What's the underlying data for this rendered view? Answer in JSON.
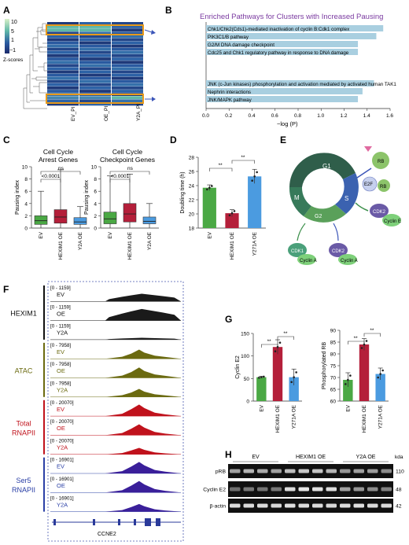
{
  "panels": {
    "A": "A",
    "B": "B",
    "C": "C",
    "D": "D",
    "E": "E",
    "F": "F",
    "G": "G",
    "H": "H"
  },
  "panelA": {
    "scale_ticks": [
      "10",
      "5",
      "1",
      "−1"
    ],
    "scale_label": "Z-scores",
    "columns": [
      "EV_PI",
      "OE_PI",
      "Y2A_PI"
    ]
  },
  "panelB": {
    "title": "Enriched Pathways for Clusters with Increased Pausing",
    "xlabel": "−log (P)",
    "bars": [
      {
        "label": "Chk1/Chk2(Cds1)-mediated inactivation of cyclin B:Cdk1 complex",
        "value": 1.54
      },
      {
        "label": "PIK3C1/B pathway",
        "value": 1.48
      },
      {
        "label": "G2/M DNA damage checkpoint",
        "value": 1.32
      },
      {
        "label": "Cdc25 and Chk1 regulatory pathway in response to DNA damage",
        "value": 1.32
      },
      {
        "label": "JNK (c-Jun kinases) phosphorylation and activation mediated by activated human TAK1",
        "value": 1.46
      },
      {
        "label": "Nephrin interactions",
        "value": 1.36
      },
      {
        "label": "JNK/MAPK pathway",
        "value": 1.32
      }
    ],
    "xticks": [
      "0.0",
      "0.2",
      "0.4",
      "0.6",
      "0.8",
      "1.0",
      "1.2",
      "1.4",
      "1.6"
    ]
  },
  "panelC": {
    "left_title": [
      "Cell Cycle",
      "Arrest Genes"
    ],
    "right_title": [
      "Cell Cycle",
      "Checkpoint Genes"
    ],
    "ylabel": "Pausing index",
    "yticks": [
      "0",
      "2",
      "4",
      "6",
      "8",
      "10"
    ],
    "groups": [
      "EV",
      "HEXIM1 OE",
      "Y2A OE"
    ],
    "sig1": "<0.0001",
    "sig2": "ns",
    "colors": [
      "#4aa844",
      "#b41f3a",
      "#4b9be0"
    ]
  },
  "panelD": {
    "ylabel": "Doubling time (h)",
    "yticks": [
      "18",
      "20",
      "22",
      "24",
      "26",
      "28"
    ],
    "groups": [
      "EV",
      "HEXIM1 OE",
      "Y271A OE"
    ],
    "values": [
      23.7,
      20.1,
      25.3
    ],
    "errors": [
      0.4,
      0.5,
      1.0
    ],
    "sig": "**"
  },
  "panelE": {
    "phases": [
      "G1",
      "S",
      "G2",
      "M"
    ],
    "labels": {
      "rb": "RB",
      "e2f": "E2F",
      "cdk2": "CDK2",
      "cyclinE": "Cyclin E",
      "cdk1": "CDK1",
      "cyclinA": "Cyclin A"
    }
  },
  "panelF": {
    "groups": [
      {
        "name": "HEXIM1",
        "color": "#111111",
        "fill": "#1a1a1a",
        "range": "[0 - 1159]"
      },
      {
        "name": "ATAC",
        "color": "#6b6a10",
        "fill": "#6b6a10",
        "range": "[0 - 7958]"
      },
      {
        "name": "Total RNAPII",
        "color": "#c0121c",
        "fill": "#c0121c",
        "range": "[0 - 20070]"
      },
      {
        "name": "Ser5 RNAPII",
        "color": "#2b40a6",
        "fill": "#3a1f9a",
        "range": "[0 - 16901]"
      }
    ],
    "tracks": [
      "EV",
      "OE",
      "Y2A"
    ],
    "gene": "CCNE2"
  },
  "panelG": {
    "left_ylabel": "Cyclin E2",
    "left_yticks": [
      "0",
      "50",
      "100",
      "150"
    ],
    "left_values": [
      53,
      120,
      53
    ],
    "left_errors": [
      2,
      16,
      18
    ],
    "right_ylabel": "Phosphorylated RB",
    "right_yticks": [
      "60",
      "65",
      "70",
      "75",
      "80",
      "85",
      "90"
    ],
    "right_values": [
      69,
      84,
      71.5
    ],
    "right_errors": [
      3,
      2.5,
      2.5
    ],
    "groups": [
      "EV",
      "HEXIM1 OE",
      "Y271A OE"
    ],
    "sig": "**"
  },
  "panelH": {
    "groups": [
      "EV",
      "HEXIM1 OE",
      "Y2A OE"
    ],
    "rows": [
      "pRB",
      "Cyclin E2",
      "β-actin"
    ],
    "kda": [
      "110",
      "48",
      "42"
    ],
    "kda_label": "kda"
  }
}
